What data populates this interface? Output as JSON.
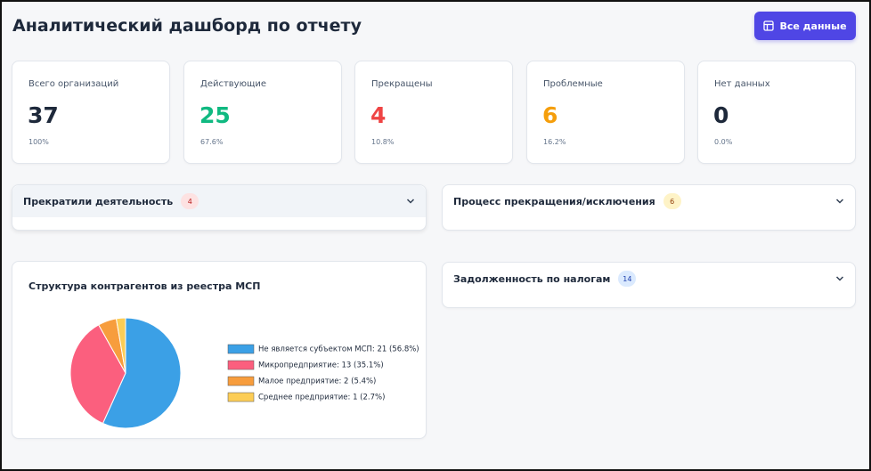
{
  "header": {
    "title": "Аналитический дашборд по отчету",
    "button": "Все данные"
  },
  "kpis": [
    {
      "label": "Всего организаций",
      "value": 37,
      "percent": "100%",
      "color": "#1e293b"
    },
    {
      "label": "Действующие",
      "value": 25,
      "percent": "67.6%",
      "color": "#10b981"
    },
    {
      "label": "Прекращены",
      "value": 4,
      "percent": "10.8%",
      "color": "#ef4444"
    },
    {
      "label": "Проблемные",
      "value": 6,
      "percent": "16.2%",
      "color": "#f59e0b"
    },
    {
      "label": "Нет данных",
      "value": 0,
      "percent": "0.0%",
      "color": "#1e293b"
    }
  ],
  "sections": [
    {
      "title": "Прекратили деятельность",
      "count": 4
    },
    {
      "title": "Процесс прекращения/исключения",
      "count": 6
    },
    {
      "title": "Задолженность по налогам",
      "count": 14
    }
  ],
  "chart_data": {
    "type": "pie",
    "title": "Структура контрагентов из реестра МСП",
    "categories": [
      "Не является субъектом МСП: 21 (56.8%)",
      "Микропредприятие: 13 (35.1%)",
      "Малое предприятие: 2 (5.4%)",
      "Среднее предприятие: 1 (2.7%)"
    ],
    "values": [
      21,
      13,
      2,
      1
    ],
    "colors": [
      "#3ba0e6",
      "#fb5f7e",
      "#f79d3d",
      "#fccd56"
    ]
  }
}
